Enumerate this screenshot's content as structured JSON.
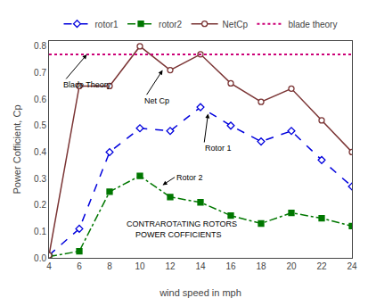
{
  "chart_data": {
    "type": "line",
    "x_label": "wind speed in mph",
    "y_label": "Power Cofficient, Cp",
    "x": [
      4,
      6,
      8,
      10,
      12,
      14,
      16,
      18,
      20,
      22,
      24
    ],
    "series": [
      {
        "name": "rotor1",
        "color": "#0000dd",
        "marker": "diamond-open",
        "line_style": "dashed",
        "values": [
          0.01,
          0.11,
          0.4,
          0.49,
          0.48,
          0.57,
          0.5,
          0.44,
          0.48,
          0.37,
          0.27
        ]
      },
      {
        "name": "rotor2",
        "color": "#007700",
        "marker": "square",
        "line_style": "dashdot",
        "values": [
          0.005,
          0.025,
          0.25,
          0.31,
          0.23,
          0.21,
          0.16,
          0.13,
          0.17,
          0.15,
          0.12
        ]
      },
      {
        "name": "NetCp",
        "color": "#7b3535",
        "marker": "circle-open",
        "line_style": "solid",
        "values": [
          0.01,
          0.65,
          0.65,
          0.8,
          0.71,
          0.77,
          0.66,
          0.59,
          0.64,
          0.52,
          0.4
        ]
      },
      {
        "name": "blade theory",
        "type": "hline",
        "color": "#cc0077",
        "line_style": "dotted",
        "value": 0.769
      }
    ],
    "xlim": [
      4,
      24
    ],
    "ylim": [
      0,
      0.82
    ],
    "xticks": [
      4,
      6,
      8,
      10,
      12,
      14,
      16,
      18,
      20,
      22,
      24
    ],
    "yticks": [
      {
        "value": 0.0,
        "label": "0.0"
      },
      0.1,
      0.2,
      0.3,
      0.4,
      0.5,
      0.6,
      0.7,
      0.8
    ],
    "grid": false,
    "legend": "top",
    "annotations": [
      {
        "text": "CONTRAROTATING ROTORS\n    POWER COFFICIENTS",
        "x": 9.0,
        "y": 0.065
      },
      {
        "text": "Blade Theory",
        "x": 6.5,
        "y": 0.769,
        "text_x": 4.8,
        "text_y": 0.655
      },
      {
        "text": "Net Cp",
        "x": 11.5,
        "y": 0.71,
        "text_x": 10.2,
        "text_y": 0.595
      },
      {
        "text": "Rotor 1",
        "x": 14.5,
        "y": 0.545,
        "text_x": 14.2,
        "text_y": 0.415
      },
      {
        "text": "Rotor 2",
        "x": 11.5,
        "y": 0.275,
        "text_x": 12.3,
        "text_y": 0.305
      }
    ]
  }
}
